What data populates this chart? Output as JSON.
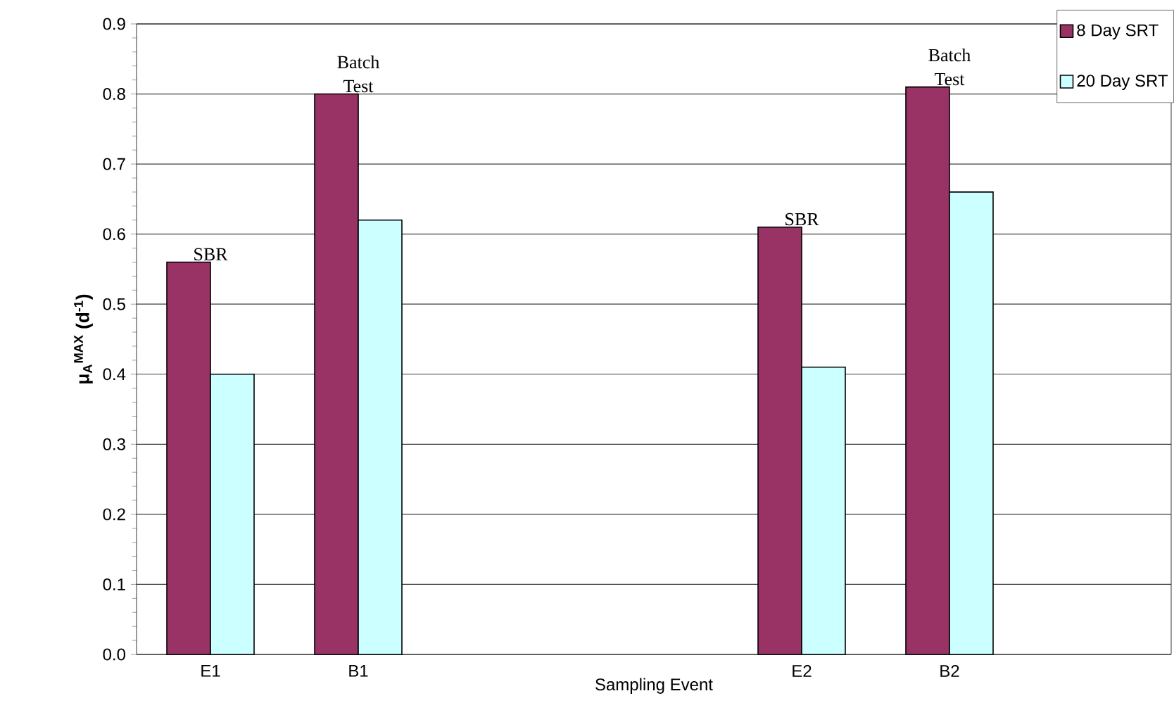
{
  "chart_data": {
    "type": "bar",
    "xlabel": "Sampling Event",
    "ylabel": "μ$_{A}$$^{MAX}$ (d$^{-1}$)",
    "categories": [
      "E1",
      "B1",
      null,
      null,
      "E2",
      "B2",
      null
    ],
    "series": [
      {
        "name": "8 Day SRT",
        "color": "#993366",
        "values": [
          0.56,
          0.8,
          null,
          null,
          0.61,
          0.81,
          null
        ]
      },
      {
        "name": "20 Day SRT",
        "color": "#ccffff",
        "values": [
          0.4,
          0.62,
          null,
          null,
          0.41,
          0.66,
          null
        ]
      }
    ],
    "ylim": [
      0,
      0.9
    ],
    "yticks": [
      {
        "value": 0,
        "label": "0.0"
      },
      0.1,
      0.2,
      0.3,
      0.4,
      0.5,
      0.6,
      0.7,
      0.8,
      0.9
    ],
    "grid": "y",
    "legend": "top right",
    "annotations": [
      "SBR",
      "Batch Test",
      "SBR",
      "Batch Test"
    ]
  }
}
